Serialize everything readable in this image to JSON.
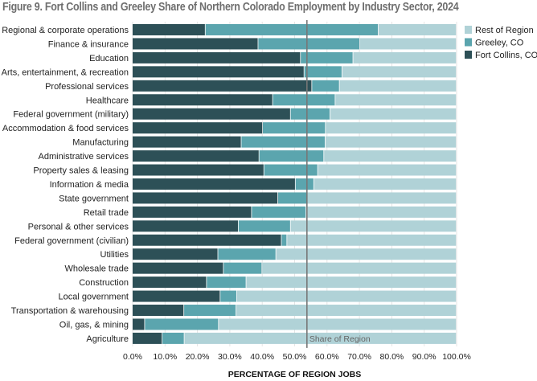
{
  "chart_data": {
    "type": "bar",
    "orientation": "horizontal",
    "stacked": true,
    "title": "Figure 9. Fort Collins and Greeley Share of Northern Colorado Employment by Industry Sector, 2024",
    "xlabel": "PERCENTAGE OF REGION JOBS",
    "ylabel": "",
    "xlim": [
      0,
      100
    ],
    "x_ticks": [
      "0.0%",
      "10.0%",
      "20.0%",
      "30.0%",
      "40.0%",
      "50.0%",
      "60.0%",
      "70.0%",
      "80.0%",
      "90.0%",
      "100.0%"
    ],
    "grid": true,
    "legend_position": "top-right",
    "categories": [
      "Regional & corporate operations",
      "Finance & insurance",
      "Education",
      "Arts, entertainment, & recreation",
      "Professional services",
      "Healthcare",
      "Federal government (military)",
      "Accommodation & food services",
      "Manufacturing",
      "Administrative services",
      "Property sales & leasing",
      "Information & media",
      "State government",
      "Retail trade",
      "Personal & other services",
      "Federal government (civilian)",
      "Utilities",
      "Wholesale trade",
      "Construction",
      "Local government",
      "Transportation & warehousing",
      "Oil, gas, & mining",
      "Agriculture"
    ],
    "series": [
      {
        "name": "Fort Collins, CO",
        "color": "#2d5057",
        "values": [
          22.5,
          38.8,
          51.9,
          53.0,
          55.4,
          43.3,
          48.8,
          40.2,
          33.6,
          39.1,
          40.6,
          50.3,
          44.9,
          36.8,
          32.7,
          46.0,
          26.4,
          28.1,
          22.9,
          27.1,
          15.9,
          3.8,
          9.2
        ]
      },
      {
        "name": "Greeley, CO",
        "color": "#5ba5ae",
        "values": [
          53.4,
          31.4,
          16.2,
          11.7,
          8.5,
          19.3,
          12.2,
          19.4,
          25.9,
          20.0,
          16.6,
          5.7,
          8.9,
          16.8,
          16.1,
          1.7,
          17.9,
          11.9,
          12.2,
          5.1,
          16.1,
          22.8,
          6.8
        ]
      },
      {
        "name": "Rest of Region",
        "color": "#b0d2d7",
        "values": [
          24.1,
          29.8,
          31.9,
          35.3,
          36.1,
          37.4,
          39.0,
          40.4,
          40.5,
          40.9,
          42.8,
          44.0,
          46.2,
          46.4,
          51.2,
          52.3,
          55.7,
          60.0,
          64.9,
          67.8,
          68.0,
          73.4,
          84.0
        ]
      }
    ],
    "legend_order": [
      "Rest of Region",
      "Greeley, CO",
      "Fort Collins, CO"
    ],
    "reference_line": {
      "label": "Share of Region",
      "value": 53.8
    }
  }
}
